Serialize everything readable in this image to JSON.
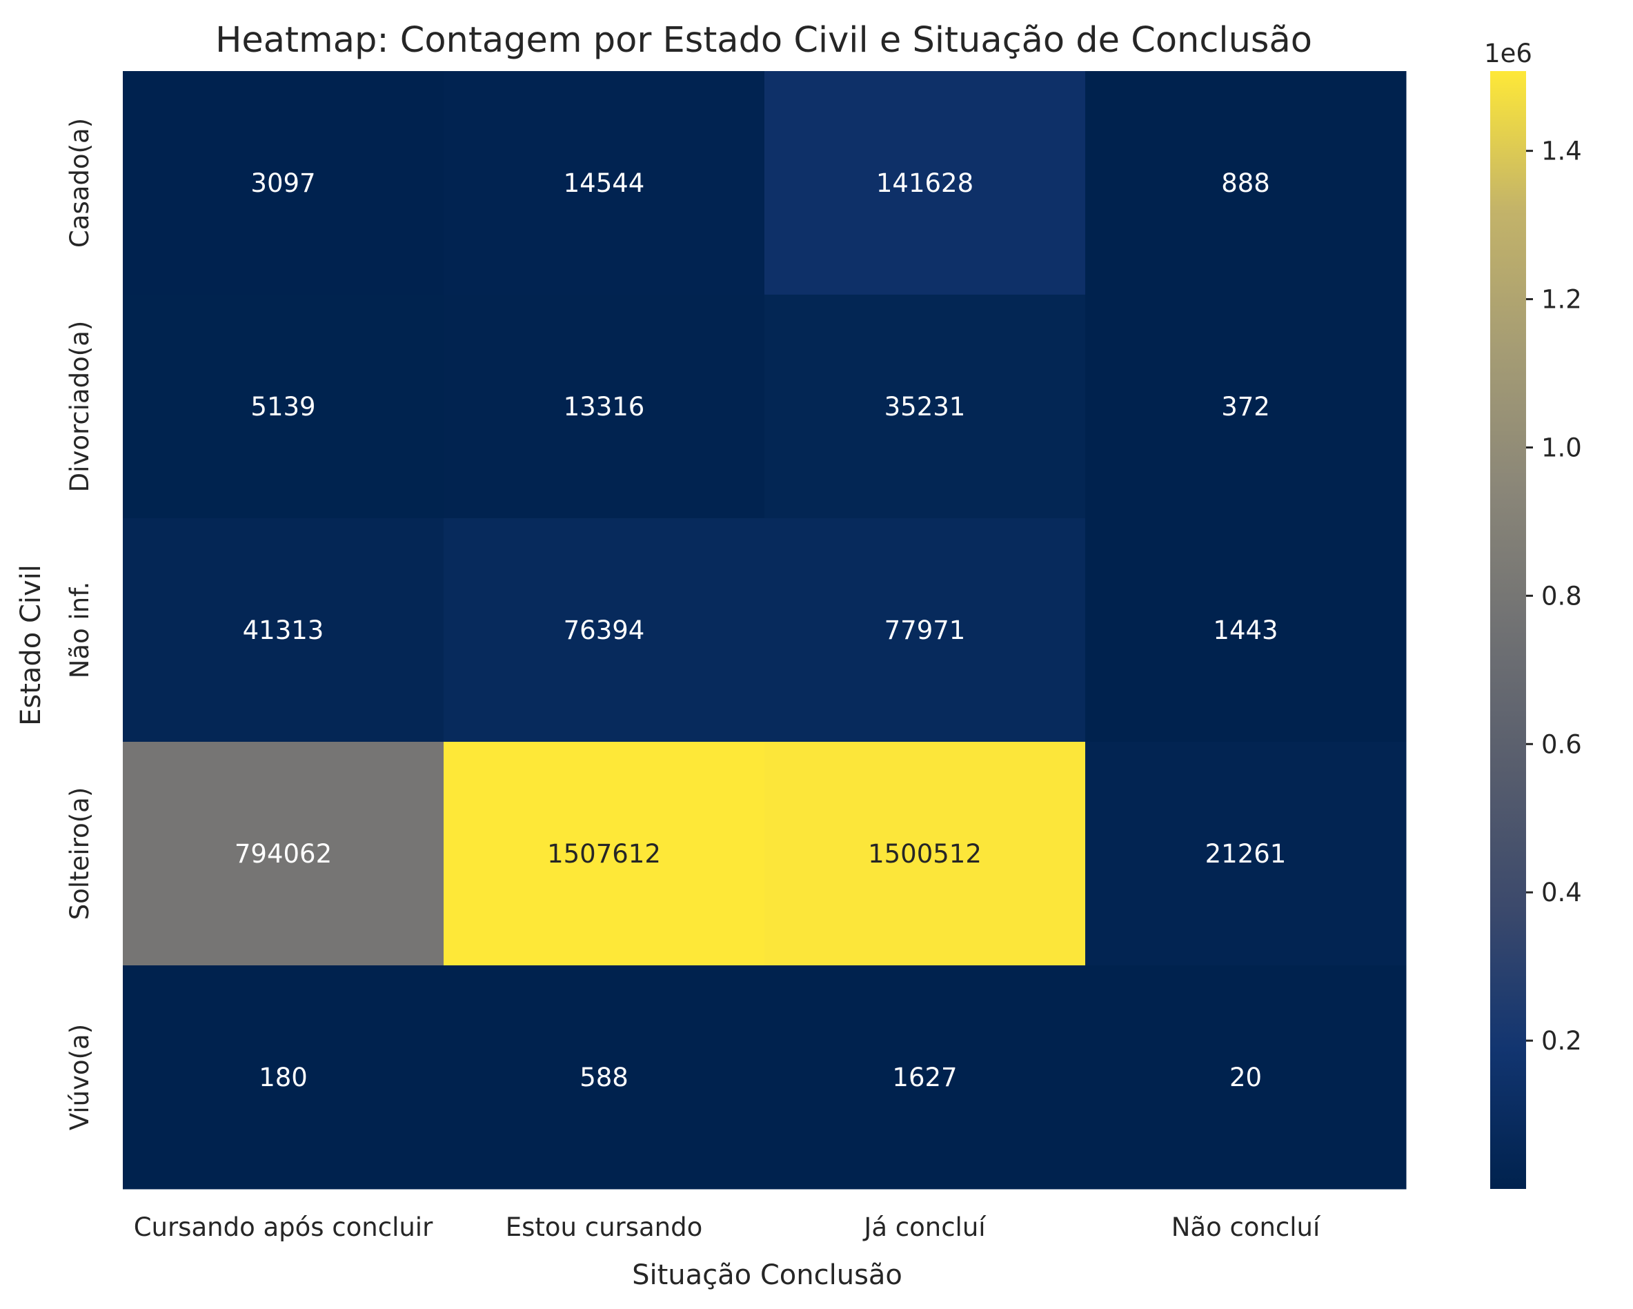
{
  "chart_data": {
    "type": "heatmap",
    "title": "Heatmap: Contagem por Estado Civil e Situação de Conclusão",
    "xlabel": "Situação Conclusão",
    "ylabel": "Estado Civil",
    "columns": [
      "Cursando após concluir",
      "Estou cursando",
      "Já concluí",
      "Não concluí"
    ],
    "rows": [
      "Casado(a)",
      "Divorciado(a)",
      "Não inf.",
      "Solteiro(a)",
      "Viúvo(a)"
    ],
    "values": [
      [
        3097,
        14544,
        141628,
        888
      ],
      [
        5139,
        13316,
        35231,
        372
      ],
      [
        41313,
        76394,
        77971,
        1443
      ],
      [
        794062,
        1507612,
        1500512,
        21261
      ],
      [
        180,
        588,
        1627,
        20
      ]
    ],
    "colormap": "cividis",
    "colorbar": {
      "range": [
        20,
        1507612
      ],
      "ticks": [
        0.2,
        0.4,
        0.6,
        0.8,
        1.0,
        1.2,
        1.4
      ],
      "tick_labels": [
        "0.2",
        "0.4",
        "0.6",
        "0.8",
        "1.0",
        "1.2",
        "1.4"
      ],
      "offset_label": "1e6",
      "scale": 1000000
    },
    "annotations": true
  }
}
